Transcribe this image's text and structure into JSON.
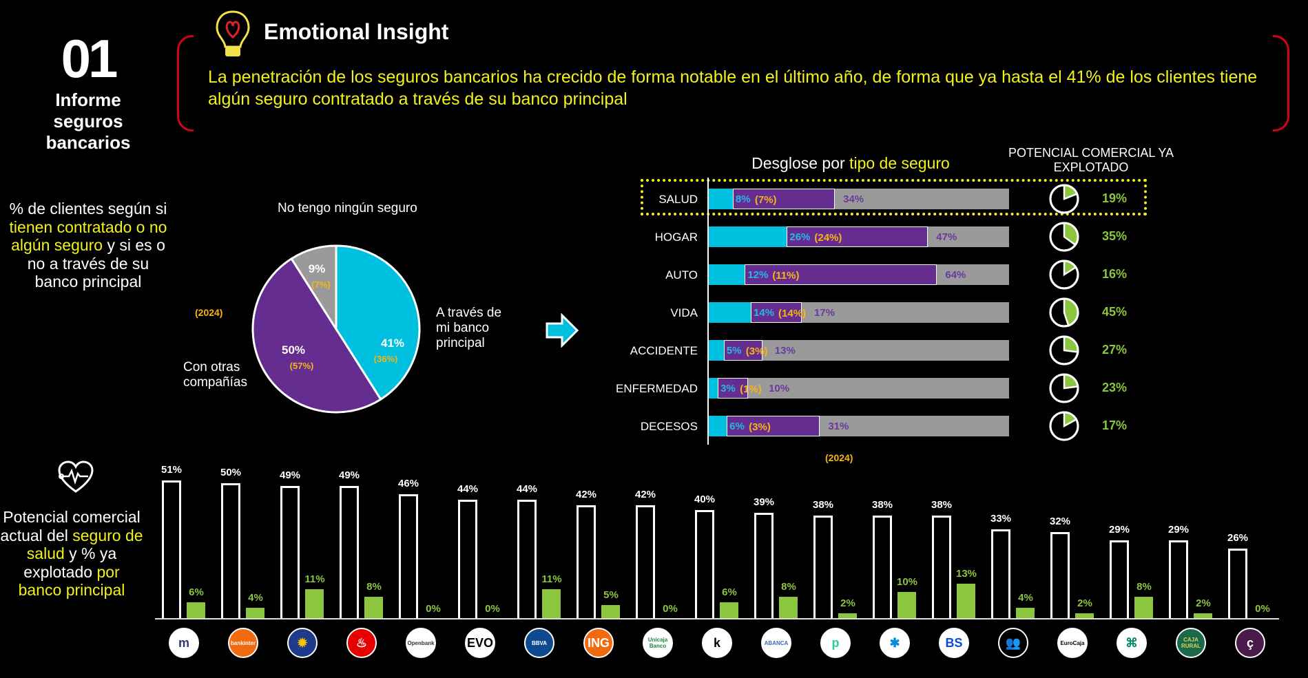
{
  "header": {
    "number": "01",
    "report_title": "Informe seguros bancarios",
    "section_title": "Emotional Insight",
    "insight_text": "La penetración de los seguros bancarios ha crecido de forma notable en el último año, de forma que ya hasta el 41% de los clientes tiene algún seguro contratado a través de su banco principal"
  },
  "left_panel": {
    "part1": "% de clientes según si ",
    "part2": "tienen contratado o no algún seguro",
    "part3": " y si es o no a través de su banco principal"
  },
  "bottom_left_panel": {
    "part1": "Potencial comercial actual del ",
    "part2": "seguro de salud",
    "part3": " y % ya explotado ",
    "part4": "por banco principal"
  },
  "colors": {
    "cyan": "#00c0e0",
    "purple": "#662d91",
    "gray": "#9a9a9a",
    "green": "#8cc63f",
    "yellow": "#f2f21a",
    "orange": "#f7b512",
    "red": "#d0021b"
  },
  "chart_data": [
    {
      "type": "pie",
      "year_label": "(2024)",
      "slices": [
        {
          "name": "A través de mi banco principal",
          "value": 41,
          "value_label": "41%",
          "prev_label": "(36%)",
          "color": "#00c0e0"
        },
        {
          "name": "Con otras compañías",
          "value": 50,
          "value_label": "50%",
          "prev_label": "(57%)",
          "color": "#662d91"
        },
        {
          "name": "No tengo ningún seguro",
          "value": 9,
          "value_label": "9%",
          "prev_label": "(7%)",
          "color": "#9a9a9a"
        }
      ]
    },
    {
      "type": "bar",
      "orientation": "horizontal-stacked",
      "title_part1": "Desglose por ",
      "title_part2": "tipo de seguro",
      "right_title": "POTENCIAL COMERCIAL YA EXPLOTADO",
      "year_label": "(2024)",
      "highlighted": "SALUD",
      "xlim": [
        0,
        100
      ],
      "rows": [
        {
          "category": "SALUD",
          "bank": 8,
          "bank_label": "8%",
          "prev_label": "(7%)",
          "other": 34,
          "other_label": "34%",
          "exploited": 19,
          "exploited_label": "19%"
        },
        {
          "category": "HOGAR",
          "bank": 26,
          "bank_label": "26%",
          "prev_label": "(24%)",
          "other": 47,
          "other_label": "47%",
          "exploited": 35,
          "exploited_label": "35%"
        },
        {
          "category": "AUTO",
          "bank": 12,
          "bank_label": "12%",
          "prev_label": "(11%)",
          "other": 64,
          "other_label": "64%",
          "exploited": 16,
          "exploited_label": "16%"
        },
        {
          "category": "VIDA",
          "bank": 14,
          "bank_label": "14%",
          "prev_label": "(14%)",
          "other": 17,
          "other_label": "17%",
          "exploited": 45,
          "exploited_label": "45%"
        },
        {
          "category": "ACCIDENTE",
          "bank": 5,
          "bank_label": "5%",
          "prev_label": "(3%)",
          "other": 13,
          "other_label": "13%",
          "exploited": 27,
          "exploited_label": "27%"
        },
        {
          "category": "ENFERMEDAD",
          "bank": 3,
          "bank_label": "3%",
          "prev_label": "(1%)",
          "other": 10,
          "other_label": "10%",
          "exploited": 23,
          "exploited_label": "23%"
        },
        {
          "category": "DECESOS",
          "bank": 6,
          "bank_label": "6%",
          "prev_label": "(3%)",
          "other": 31,
          "other_label": "31%",
          "exploited": 17,
          "exploited_label": "17%"
        }
      ]
    },
    {
      "type": "bar",
      "orientation": "vertical-grouped",
      "series": [
        {
          "name": "Potencial comercial",
          "values": [
            51,
            50,
            49,
            49,
            46,
            44,
            44,
            42,
            42,
            40,
            39,
            38,
            38,
            38,
            33,
            32,
            29,
            29,
            26
          ]
        },
        {
          "name": "Ya explotado",
          "values": [
            6,
            4,
            11,
            8,
            0,
            0,
            11,
            5,
            0,
            6,
            8,
            2,
            10,
            13,
            4,
            2,
            8,
            2,
            0
          ]
        }
      ],
      "ylim": [
        0,
        55
      ],
      "banks": [
        {
          "logo_text": "m",
          "bg": "#ffffff",
          "fg": "#2a3a7a"
        },
        {
          "logo_text": "bankinter",
          "bg": "#f26a10",
          "fg": "#ffffff"
        },
        {
          "logo_text": "✹",
          "bg": "#1e3a8a",
          "fg": "#f5c400"
        },
        {
          "logo_text": "♨",
          "bg": "#e60000",
          "fg": "#ffffff"
        },
        {
          "logo_text": "Openbank",
          "bg": "#ffffff",
          "fg": "#333333"
        },
        {
          "logo_text": "EVO",
          "bg": "#ffffff",
          "fg": "#000000"
        },
        {
          "logo_text": "BBVA",
          "bg": "#0e4a8f",
          "fg": "#ffffff"
        },
        {
          "logo_text": "ING",
          "bg": "#f26a10",
          "fg": "#ffffff"
        },
        {
          "logo_text": "Unicaja Banco",
          "bg": "#ffffff",
          "fg": "#1a8a3a"
        },
        {
          "logo_text": "k",
          "bg": "#ffffff",
          "fg": "#000000"
        },
        {
          "logo_text": "ABANCA",
          "bg": "#ffffff",
          "fg": "#3a6ab0"
        },
        {
          "logo_text": "p",
          "bg": "#ffffff",
          "fg": "#2ad0a0"
        },
        {
          "logo_text": "✱",
          "bg": "#ffffff",
          "fg": "#0a8ad8"
        },
        {
          "logo_text": "BS",
          "bg": "#ffffff",
          "fg": "#0a4ad8"
        },
        {
          "logo_text": "👥",
          "bg": "#000000",
          "fg": "#5a8aa0"
        },
        {
          "logo_text": "EuroCaja",
          "bg": "#ffffff",
          "fg": "#000000"
        },
        {
          "logo_text": "⌘",
          "bg": "#ffffff",
          "fg": "#0a8a6a"
        },
        {
          "logo_text": "CAJA RURAL",
          "bg": "#1a6a4a",
          "fg": "#e0d060"
        },
        {
          "logo_text": "ç",
          "bg": "#4a1a4a",
          "fg": "#ffffff"
        }
      ]
    }
  ]
}
